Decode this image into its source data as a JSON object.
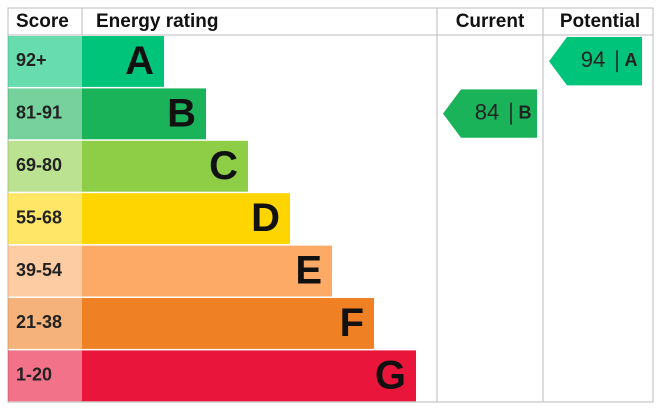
{
  "header": {
    "score": "Score",
    "energy_rating": "Energy rating",
    "current": "Current",
    "potential": "Potential"
  },
  "bands": [
    {
      "score": "92+",
      "letter": "A",
      "color": "#00c47a"
    },
    {
      "score": "81-91",
      "letter": "B",
      "color": "#1bb35a"
    },
    {
      "score": "69-80",
      "letter": "C",
      "color": "#8dce46"
    },
    {
      "score": "55-68",
      "letter": "D",
      "color": "#ffd500"
    },
    {
      "score": "39-54",
      "letter": "E",
      "color": "#fcaa65"
    },
    {
      "score": "21-38",
      "letter": "F",
      "color": "#ef8023"
    },
    {
      "score": "1-20",
      "letter": "G",
      "color": "#e9153b"
    }
  ],
  "current": {
    "value": 84,
    "letter": "B"
  },
  "potential": {
    "value": 94,
    "letter": "A"
  }
}
